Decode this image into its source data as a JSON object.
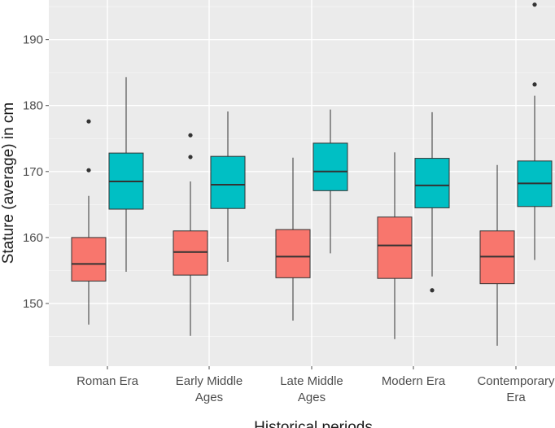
{
  "chart_data": {
    "type": "boxplot",
    "xlabel": "Historical periods",
    "ylabel": "Stature (average) in cm",
    "ylim": [
      140.5,
      196
    ],
    "yticks": [
      150,
      160,
      170,
      180,
      190
    ],
    "grid": true,
    "legend": "none",
    "colors": {
      "panel": "#ebebeb",
      "grid": "#ffffff",
      "series_a": "#f8766d",
      "series_b": "#00bfc4"
    },
    "categories": [
      {
        "label": [
          "Roman Era"
        ]
      },
      {
        "label": [
          "Early Middle",
          "Ages"
        ]
      },
      {
        "label": [
          "Late Middle",
          "Ages"
        ]
      },
      {
        "label": [
          "Modern Era"
        ]
      },
      {
        "label": [
          "Contemporary",
          "Era"
        ]
      }
    ],
    "series": [
      {
        "color": "#f8766d",
        "boxes": [
          {
            "min": 146.8,
            "q1": 153.4,
            "median": 156.0,
            "q3": 160.0,
            "max": 166.3,
            "outliers": [
              170.2,
              177.6
            ]
          },
          {
            "min": 145.1,
            "q1": 154.3,
            "median": 157.8,
            "q3": 161.0,
            "max": 168.5,
            "outliers": [
              172.2,
              175.5
            ]
          },
          {
            "min": 147.4,
            "q1": 153.9,
            "median": 157.1,
            "q3": 161.2,
            "max": 172.1,
            "outliers": []
          },
          {
            "min": 144.6,
            "q1": 153.8,
            "median": 158.8,
            "q3": 163.1,
            "max": 172.9,
            "outliers": []
          },
          {
            "min": 143.6,
            "q1": 153.0,
            "median": 157.1,
            "q3": 161.0,
            "max": 171.0,
            "outliers": []
          }
        ]
      },
      {
        "color": "#00bfc4",
        "boxes": [
          {
            "min": 154.8,
            "q1": 164.3,
            "median": 168.5,
            "q3": 172.8,
            "max": 184.3,
            "outliers": []
          },
          {
            "min": 156.3,
            "q1": 164.4,
            "median": 168.0,
            "q3": 172.3,
            "max": 179.1,
            "outliers": []
          },
          {
            "min": 157.6,
            "q1": 167.1,
            "median": 170.0,
            "q3": 174.3,
            "max": 179.4,
            "outliers": []
          },
          {
            "min": 154.1,
            "q1": 164.5,
            "median": 167.9,
            "q3": 172.0,
            "max": 179.0,
            "outliers": [
              152.0
            ]
          },
          {
            "min": 156.6,
            "q1": 164.7,
            "median": 168.2,
            "q3": 171.6,
            "max": 181.5,
            "outliers": [
              183.2,
              195.3
            ]
          }
        ]
      }
    ]
  }
}
